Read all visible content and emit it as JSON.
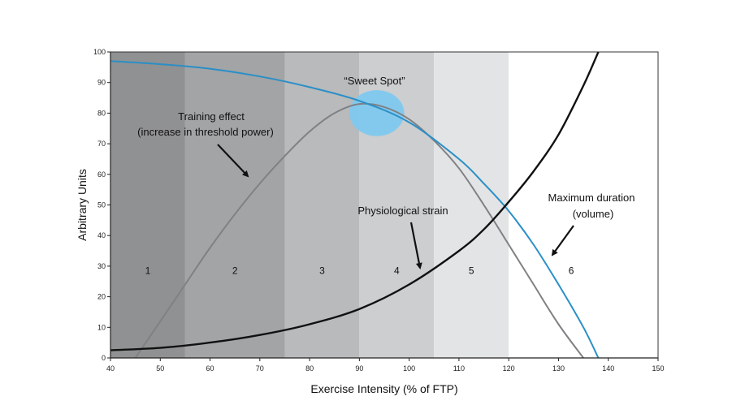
{
  "chart_data": {
    "type": "line",
    "title": "",
    "xlabel": "Exercise Intensity (% of FTP)",
    "ylabel": "Arbitrary Units",
    "xlim": [
      40,
      150
    ],
    "ylim": [
      0,
      100
    ],
    "x_ticks": [
      40,
      50,
      60,
      70,
      80,
      90,
      100,
      110,
      120,
      130,
      140,
      150
    ],
    "y_ticks": [
      0,
      10,
      20,
      30,
      40,
      50,
      60,
      70,
      80,
      90,
      100
    ],
    "grid": false,
    "colors": {
      "zones": [
        "#909192",
        "#a2a4a6",
        "#b8babc",
        "#ccced0",
        "#e2e4e5",
        "#ffffff"
      ],
      "training_effect": "#808184",
      "maximum_duration": "#2a8fc7",
      "physiological_strain": "#111111",
      "sweet_spot": "#7ec8ef"
    },
    "zones": [
      {
        "label": "1",
        "from": 40,
        "to": 55
      },
      {
        "label": "2",
        "from": 55,
        "to": 75
      },
      {
        "label": "3",
        "from": 75,
        "to": 90
      },
      {
        "label": "4",
        "from": 90,
        "to": 105
      },
      {
        "label": "5",
        "from": 105,
        "to": 120
      },
      {
        "label": "6",
        "from": 120,
        "to": 150
      }
    ],
    "series": [
      {
        "name": "Training effect (increase in threshold power)",
        "x": [
          45,
          50,
          55,
          60,
          65,
          70,
          75,
          80,
          85,
          90,
          95,
          100,
          105,
          110,
          115,
          120,
          125,
          130,
          135
        ],
        "y": [
          0,
          12,
          24,
          36,
          47,
          57,
          66,
          74,
          80,
          83,
          82,
          78,
          71,
          62,
          50,
          37,
          24,
          11,
          0
        ]
      },
      {
        "name": "Maximum duration (volume)",
        "x": [
          40,
          50,
          60,
          70,
          80,
          90,
          100,
          110,
          115,
          120,
          125,
          130,
          135,
          138
        ],
        "y": [
          97,
          96,
          94.5,
          92,
          88.5,
          84,
          77,
          65,
          57,
          48,
          37,
          24,
          10,
          0
        ]
      },
      {
        "name": "Physiological strain",
        "x": [
          40,
          50,
          60,
          70,
          80,
          90,
          100,
          110,
          115,
          120,
          125,
          130,
          135,
          138
        ],
        "y": [
          2.5,
          3.3,
          5,
          7.5,
          11,
          16,
          24,
          35,
          42,
          51,
          61,
          73,
          89,
          100
        ]
      }
    ],
    "annotations": {
      "sweet_spot": {
        "label": "“Sweet Spot”",
        "cx": 93.5,
        "cy": 80,
        "rx": 5.5,
        "ry": 7.5
      },
      "training_effect_line1": "Training effect",
      "training_effect_line2": "(increase in threshold power)",
      "physiological_strain": "Physiological strain",
      "maximum_duration_line1": "Maximum duration",
      "maximum_duration_line2": "(volume)"
    }
  }
}
